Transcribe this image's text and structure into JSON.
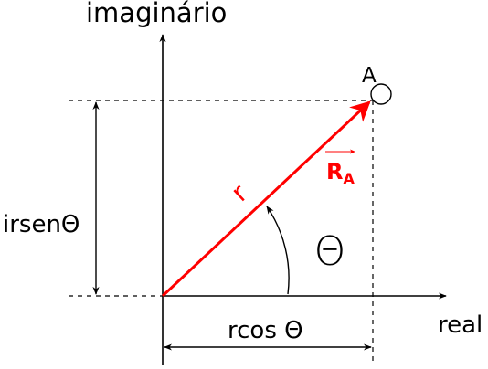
{
  "labels": {
    "imaginary_axis": "imaginário",
    "real_axis": "real",
    "point": "A",
    "magnitude": "r",
    "vector_base": "R",
    "vector_subscript": "A",
    "angle": "Θ",
    "vertical_component": "irsenΘ",
    "horizontal_component": "rcos Θ"
  },
  "colors": {
    "vector": "#ff0000",
    "lines": "#000000"
  }
}
